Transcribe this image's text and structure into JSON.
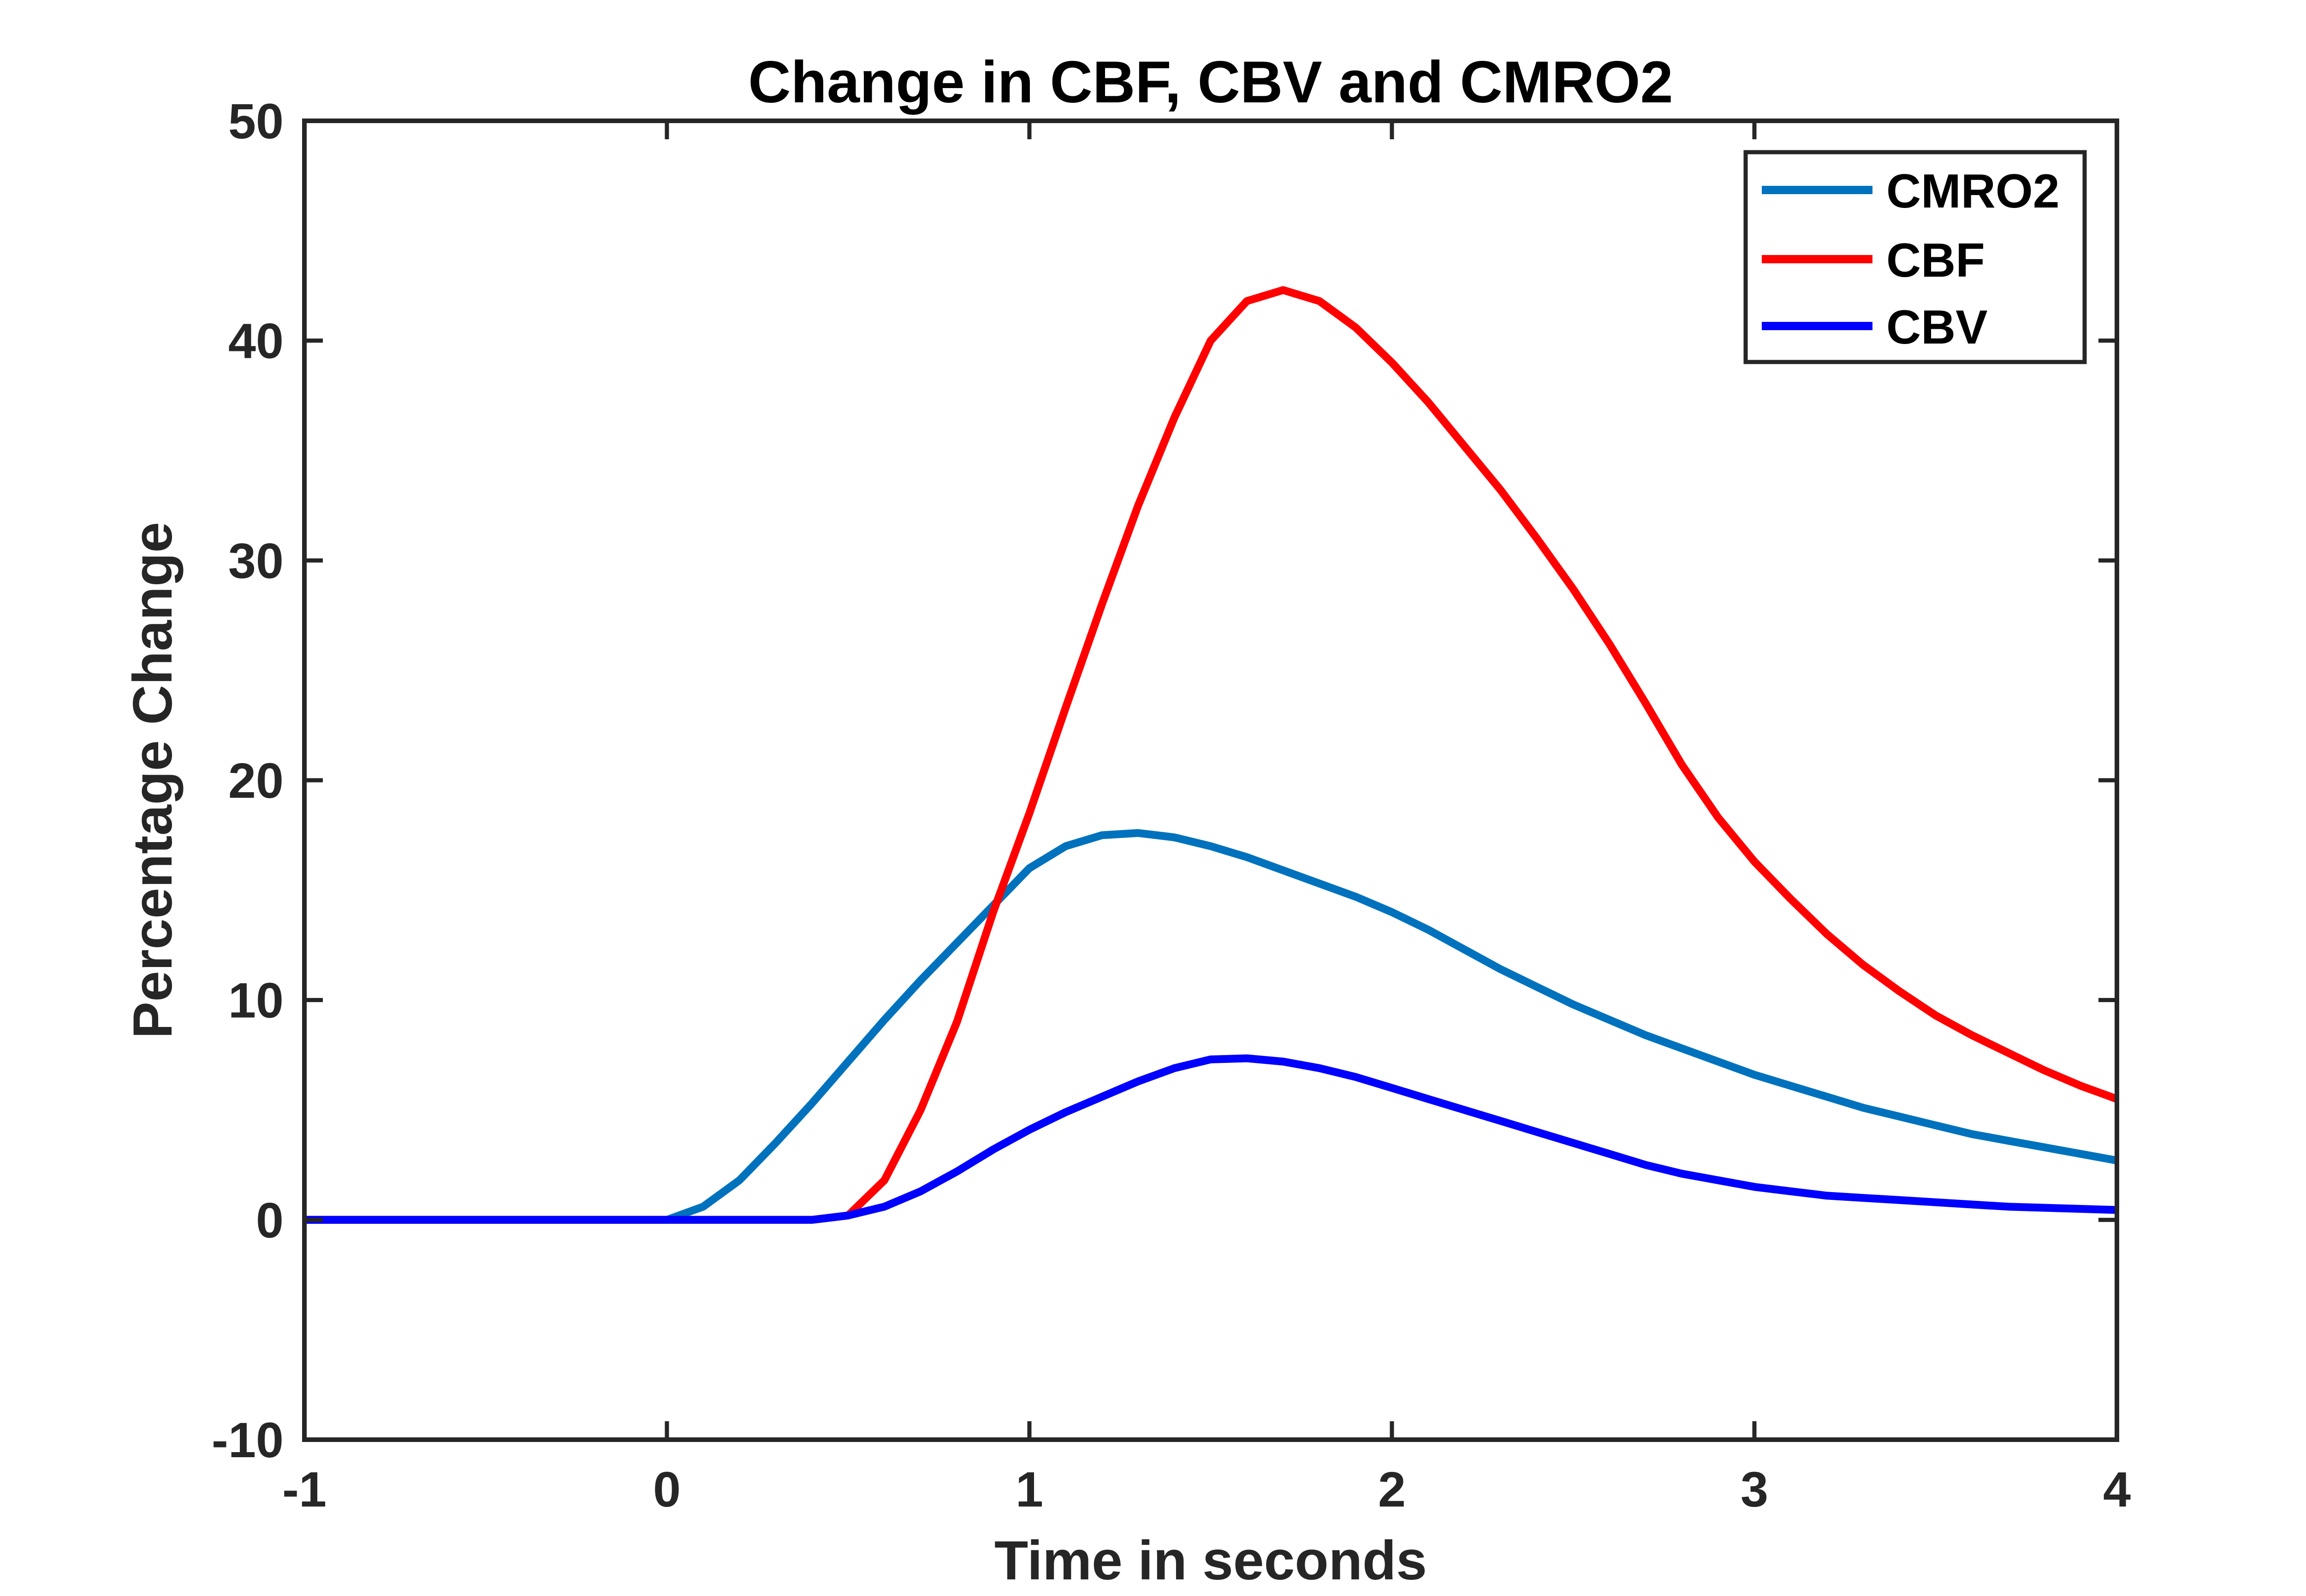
{
  "chart_data": {
    "type": "line",
    "title": "Change in CBF, CBV and CMRO2",
    "xlabel": "Time in seconds",
    "ylabel": "Percentage Change",
    "xlim": [
      -1,
      4
    ],
    "ylim": [
      -10,
      50
    ],
    "xticks": [
      -1,
      0,
      1,
      2,
      3,
      4
    ],
    "yticks": [
      -10,
      0,
      10,
      20,
      30,
      40,
      50
    ],
    "grid": false,
    "legend_position": "top-right",
    "x": [
      -1.0,
      -0.9,
      -0.8,
      -0.7,
      -0.6,
      -0.5,
      -0.4,
      -0.3,
      -0.2,
      -0.1,
      0.0,
      0.1,
      0.2,
      0.3,
      0.4,
      0.5,
      0.6,
      0.7,
      0.8,
      0.9,
      1.0,
      1.1,
      1.2,
      1.3,
      1.4,
      1.5,
      1.6,
      1.7,
      1.8,
      1.9,
      2.0,
      2.1,
      2.2,
      2.3,
      2.4,
      2.5,
      2.6,
      2.7,
      2.8,
      2.9,
      3.0,
      3.1,
      3.2,
      3.3,
      3.4,
      3.5,
      3.6,
      3.7,
      3.8,
      3.9,
      4.0
    ],
    "series": [
      {
        "name": "CMRO2",
        "color": "#0072BD",
        "values": [
          0,
          0,
          0,
          0,
          0,
          0,
          0,
          0,
          0,
          0,
          0,
          0.6,
          1.8,
          3.5,
          5.3,
          7.2,
          9.1,
          10.9,
          12.6,
          14.3,
          16.0,
          17.0,
          17.5,
          17.6,
          17.4,
          17.0,
          16.5,
          15.9,
          15.3,
          14.7,
          14.0,
          13.2,
          12.3,
          11.4,
          10.6,
          9.8,
          9.1,
          8.4,
          7.8,
          7.2,
          6.6,
          6.1,
          5.6,
          5.1,
          4.7,
          4.3,
          3.9,
          3.6,
          3.3,
          3.0,
          2.7
        ]
      },
      {
        "name": "CBF",
        "color": "#FF0000",
        "values": [
          0,
          0,
          0,
          0,
          0,
          0,
          0,
          0,
          0,
          0,
          0,
          0,
          0,
          0,
          0,
          0.2,
          1.8,
          5.0,
          9.0,
          14.0,
          18.5,
          23.3,
          28.0,
          32.5,
          36.5,
          40.0,
          41.8,
          42.3,
          41.8,
          40.6,
          39.0,
          37.2,
          35.2,
          33.2,
          31.0,
          28.7,
          26.2,
          23.5,
          20.7,
          18.3,
          16.3,
          14.6,
          13.0,
          11.6,
          10.4,
          9.3,
          8.4,
          7.6,
          6.8,
          6.1,
          5.5
        ]
      },
      {
        "name": "CBV",
        "color": "#0000FF",
        "values": [
          0,
          0,
          0,
          0,
          0,
          0,
          0,
          0,
          0,
          0,
          0,
          0,
          0,
          0,
          0,
          0.2,
          0.6,
          1.3,
          2.2,
          3.2,
          4.1,
          4.9,
          5.6,
          6.3,
          6.9,
          7.3,
          7.35,
          7.2,
          6.9,
          6.5,
          6.0,
          5.5,
          5.0,
          4.5,
          4.0,
          3.5,
          3.0,
          2.5,
          2.1,
          1.8,
          1.5,
          1.3,
          1.1,
          1.0,
          0.9,
          0.8,
          0.7,
          0.6,
          0.55,
          0.5,
          0.45
        ]
      }
    ]
  }
}
